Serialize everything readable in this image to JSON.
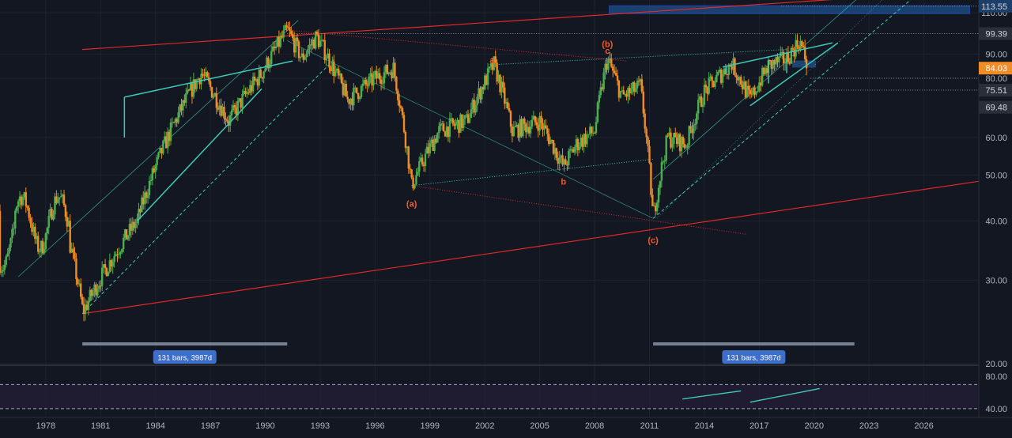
{
  "chart_data": {
    "type": "candlestick",
    "symbol_note": "",
    "x_ticks": [
      "1978",
      "1981",
      "1984",
      "1987",
      "1990",
      "1993",
      "1996",
      "1999",
      "2002",
      "2005",
      "2008",
      "2011",
      "2014",
      "2017",
      "2020",
      "2023",
      "2026"
    ],
    "y_ticks": [
      "110.00",
      "90.00",
      "80.00",
      "60.00",
      "50.00",
      "40.00",
      "30.00",
      "20.00"
    ],
    "price_labels": [
      {
        "value": 113.55,
        "text": "113.55",
        "bg": "#1e3f6a",
        "fg": "#d1d4dc"
      },
      {
        "value": 99.39,
        "text": "99.39",
        "bg": "#2a2e39",
        "fg": "#d1d4dc"
      },
      {
        "value": 84.03,
        "text": "84.03",
        "bg": "#f08c26",
        "fg": "#ffffff"
      },
      {
        "value": 75.51,
        "text": "75.51",
        "bg": "#2a2e39",
        "fg": "#d1d4dc"
      },
      {
        "value": 69.48,
        "text": "69.48",
        "bg": "#2a2e39",
        "fg": "#d1d4dc"
      }
    ],
    "ylim": [
      20,
      117
    ],
    "xlim": [
      1975.5,
      2029
    ],
    "key_points": [
      {
        "year": 1980.0,
        "price": 25.5
      },
      {
        "year": 1983.0,
        "price": 40
      },
      {
        "year": 1986.5,
        "price": 82
      },
      {
        "year": 1988.0,
        "price": 65
      },
      {
        "year": 1989.8,
        "price": 82
      },
      {
        "year": 1991.2,
        "price": 101
      },
      {
        "year": 1992.0,
        "price": 88
      },
      {
        "year": 1992.8,
        "price": 98
      },
      {
        "year": 1994.5,
        "price": 72
      },
      {
        "year": 1996.0,
        "price": 80
      },
      {
        "year": 1997.0,
        "price": 84
      },
      {
        "year": 1998.0,
        "price": 47.5
      },
      {
        "year": 1999.5,
        "price": 62
      },
      {
        "year": 2001.0,
        "price": 65
      },
      {
        "year": 2002.5,
        "price": 85.5
      },
      {
        "year": 2003.5,
        "price": 62
      },
      {
        "year": 2005.0,
        "price": 65
      },
      {
        "year": 2006.3,
        "price": 52
      },
      {
        "year": 2007.0,
        "price": 58
      },
      {
        "year": 2008.0,
        "price": 62
      },
      {
        "year": 2008.7,
        "price": 88
      },
      {
        "year": 2009.5,
        "price": 73
      },
      {
        "year": 2010.5,
        "price": 77
      },
      {
        "year": 2011.2,
        "price": 40.5
      },
      {
        "year": 2012.0,
        "price": 60
      },
      {
        "year": 2013.0,
        "price": 58
      },
      {
        "year": 2014.0,
        "price": 75
      },
      {
        "year": 2015.5,
        "price": 86
      },
      {
        "year": 2016.5,
        "price": 72
      },
      {
        "year": 2017.5,
        "price": 85
      },
      {
        "year": 2018.5,
        "price": 88
      },
      {
        "year": 2019.2,
        "price": 96
      },
      {
        "year": 2019.6,
        "price": 86
      }
    ],
    "wave_labels": [
      {
        "text": "(a)",
        "year": 1998.0,
        "price": 43.5
      },
      {
        "text": "a",
        "year": 2002.4,
        "price": 87.5
      },
      {
        "text": "b",
        "year": 2006.3,
        "price": 48.5
      },
      {
        "text": "(b)",
        "year": 2008.7,
        "price": 94.5
      },
      {
        "text": "c",
        "year": 2008.7,
        "price": 91.5
      },
      {
        "text": "(c)",
        "year": 2011.2,
        "price": 36.5
      }
    ],
    "measure_labels": [
      {
        "text": "131 bars, 3987d",
        "x1": 1980.0,
        "x2": 1991.2
      },
      {
        "text": "131 bars, 3987d",
        "x1": 2011.2,
        "x2": 2022.2
      }
    ],
    "oscillator": {
      "y_ticks": [
        "80.00",
        "40.00"
      ],
      "ylim": [
        30,
        90
      ],
      "upper_band": 70,
      "lower_band": 40
    },
    "colors": {
      "background": "#131722",
      "up": "#4caf50",
      "down": "#f08c26",
      "trend_red": "#e02828",
      "channel_teal": "#3fc9b7",
      "zone_blue": "#1e4f8a",
      "osc_line": "#d49a4a",
      "osc_band": "#2a1f3d"
    }
  }
}
